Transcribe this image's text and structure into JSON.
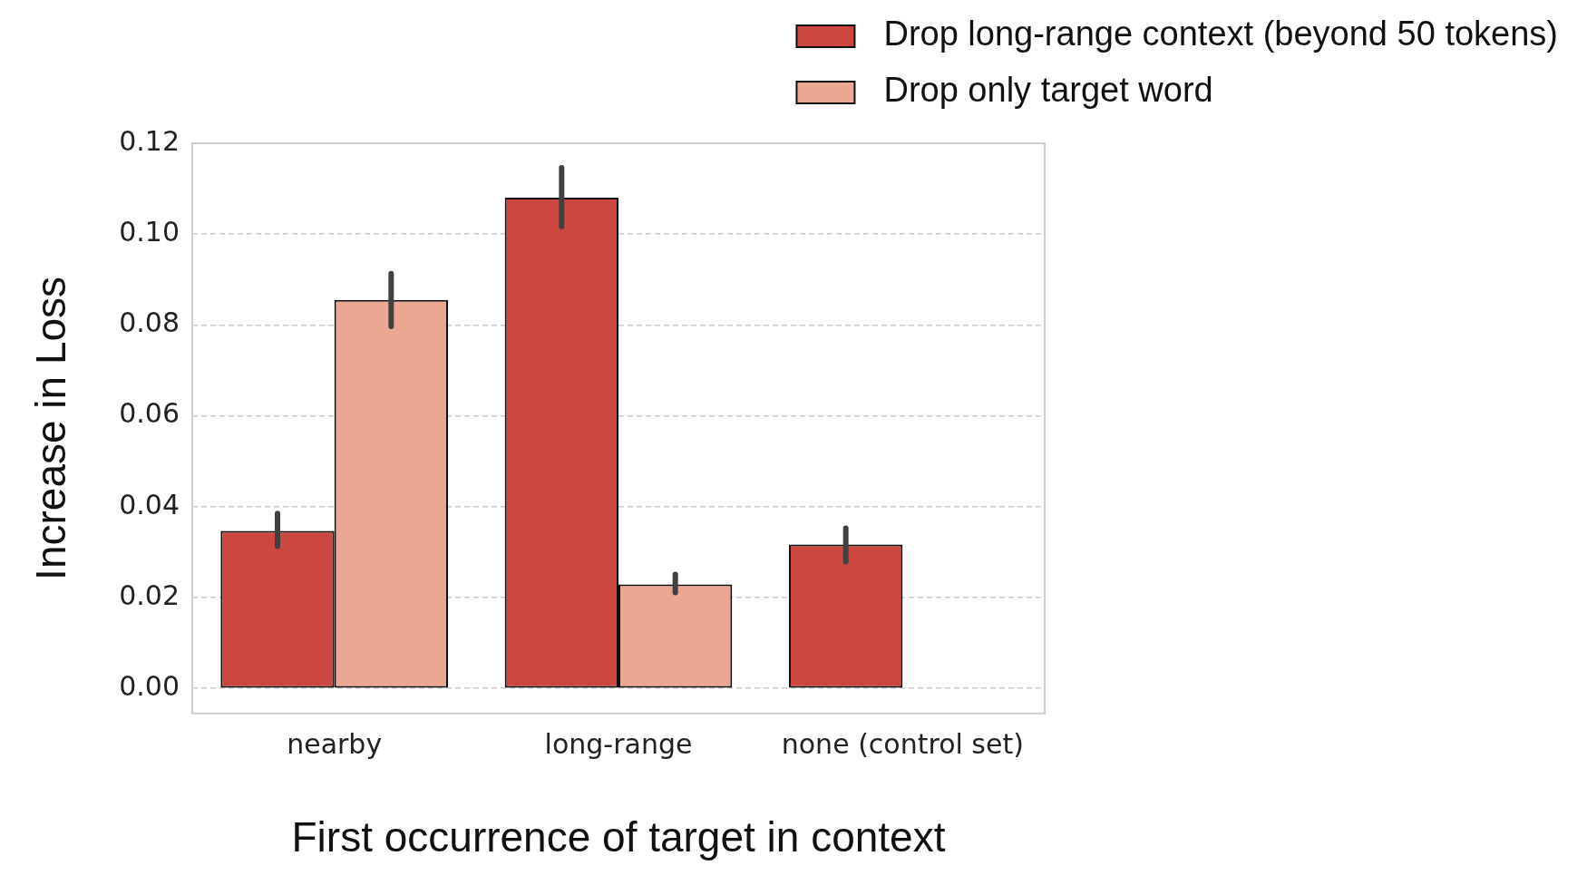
{
  "chart_data": {
    "type": "bar",
    "xlabel": "First occurrence of target in context",
    "ylabel": "Increase in Loss",
    "categories": [
      "nearby",
      "long-range",
      "none (control set)"
    ],
    "series": [
      {
        "name": "Drop long-range context (beyond 50 tokens)",
        "color": "#cb4740",
        "values": [
          0.0347,
          0.108,
          0.0317
        ],
        "errors": [
          [
            0.0313,
            0.0385
          ],
          [
            0.1017,
            0.1146
          ],
          [
            0.0279,
            0.0353
          ]
        ]
      },
      {
        "name": "Drop only target word",
        "color": "#eca792",
        "values": [
          0.0855,
          0.0229,
          0
        ],
        "errors": [
          [
            0.0797,
            0.0913
          ],
          [
            0.0211,
            0.0251
          ],
          null
        ]
      }
    ],
    "ylim": [
      -0.0055,
      0.12
    ],
    "yticks": [
      {
        "value": 0,
        "label": "0.00"
      },
      {
        "value": 0.02,
        "label": "0.02"
      },
      {
        "value": 0.04,
        "label": "0.04"
      },
      {
        "value": 0.06,
        "label": "0.06"
      },
      {
        "value": 0.08,
        "label": "0.08"
      },
      {
        "value": 0.1,
        "label": "0.10"
      },
      {
        "value": 0.12,
        "label": "0.12"
      }
    ],
    "grid": "y",
    "legend": "top right"
  }
}
